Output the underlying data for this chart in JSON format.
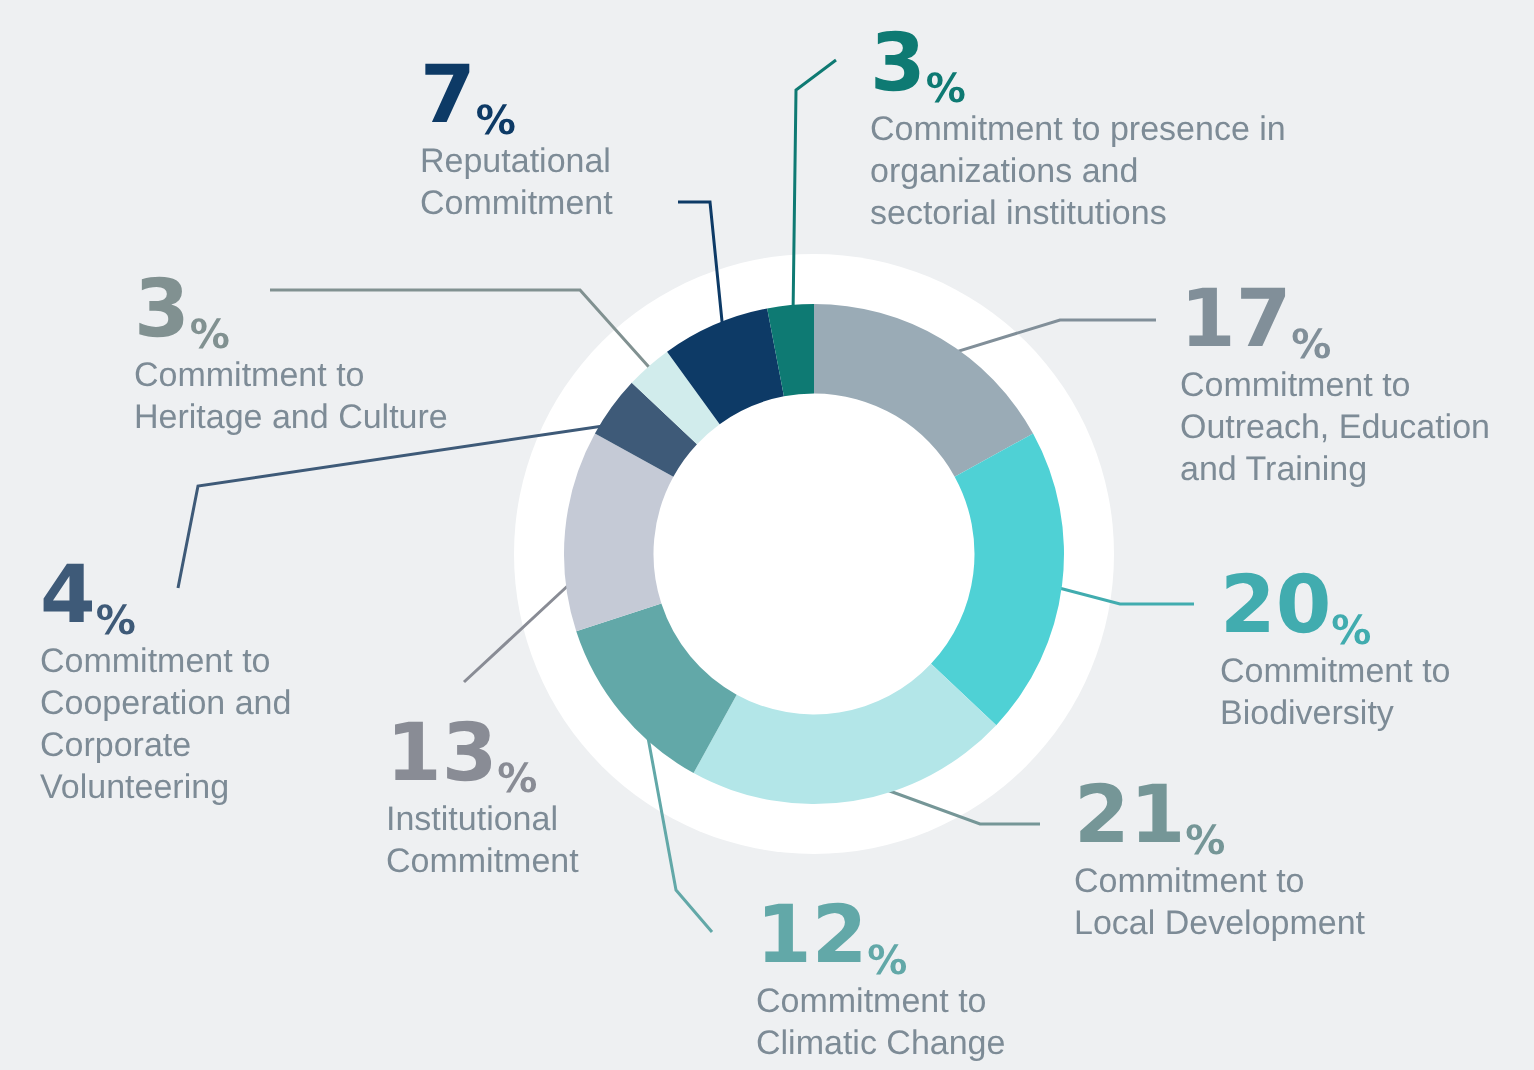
{
  "chart_data": {
    "type": "donut",
    "categories": [
      "Commitment to Outreach, Education and Training",
      "Commitment to Biodiversity",
      "Commitment to Local Development",
      "Commitment to Climatic Change",
      "Institutional Commitment",
      "Commitment to Cooperation and Corporate Volunteering",
      "Commitment to Heritage and Culture",
      "Reputational Commitment",
      "Commitment to presence in organizations and sectorial institutions"
    ],
    "values": [
      17,
      20,
      21,
      12,
      13,
      4,
      3,
      7,
      3
    ],
    "value_labels": [
      "17%",
      "20%",
      "21%",
      "12%",
      "13%",
      "4%",
      "3%",
      "7%",
      "3%"
    ],
    "colors": [
      "#9aabb6",
      "#4fd1d5",
      "#b3e6e8",
      "#62a8a8",
      "#c5cad6",
      "#3e5a78",
      "#d1ecec",
      "#0d3a66",
      "#0e7a73"
    ],
    "legend": false
  }
}
